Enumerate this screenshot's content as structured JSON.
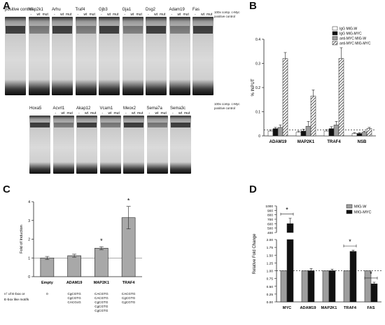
{
  "panels": {
    "A": {
      "letter": "A"
    },
    "B": {
      "letter": "B"
    },
    "C": {
      "letter": "C"
    },
    "D": {
      "letter": "D"
    }
  },
  "gels": {
    "lane_sub": {
      "minus": "-",
      "wt": "wt",
      "mut": "mut"
    },
    "control_note": "100x comp. c-Myc positive control",
    "row1": [
      {
        "label": "positive control"
      },
      {
        "label": "Map2k1"
      },
      {
        "label": "Arhu"
      },
      {
        "label": "Traf4"
      },
      {
        "label": "Gjb3"
      },
      {
        "label": "Gja1"
      },
      {
        "label": "Dsg2"
      },
      {
        "label": "Adam19"
      },
      {
        "label": "Fas"
      }
    ],
    "row2": [
      {
        "label": "Hoxa5"
      },
      {
        "label": "Acvrl1"
      },
      {
        "label": "Akap12"
      },
      {
        "label": "Vcam1"
      },
      {
        "label": "Meox2"
      },
      {
        "label": "Sema7a"
      },
      {
        "label": "Sema3c"
      }
    ]
  },
  "colors": {
    "black": "#111111",
    "grey": "#9e9e9e",
    "white": "#ffffff",
    "gel_bg": "#dcdcdc",
    "gel_band": "#1a1a1a"
  },
  "chart_data": [
    {
      "panel": "B",
      "type": "bar",
      "ylabel": "% INPUT",
      "ylim": [
        0,
        0.4
      ],
      "yticks": [
        "0",
        "0.1",
        "0.2",
        "0.3",
        "0.4"
      ],
      "ytick_values": [
        0,
        0.1,
        0.2,
        0.3,
        0.4
      ],
      "dashed_line": 0.025,
      "categories": [
        "ADAM19",
        "MAP2K1",
        "TRAF4",
        "NSB"
      ],
      "series": [
        {
          "name": "IgG MIG-W",
          "fill": "white",
          "values": [
            0.02,
            0.015,
            0.02,
            0.01
          ],
          "errors": [
            0.005,
            0.005,
            0.006,
            0.003
          ]
        },
        {
          "name": "IgG MIG-MYC",
          "fill": "black",
          "values": [
            0.03,
            0.02,
            0.03,
            0.01
          ],
          "errors": [
            0.005,
            0.008,
            0.008,
            0.003
          ]
        },
        {
          "name": "anti-MYC MIG-W",
          "fill": "grey",
          "values": [
            0.035,
            0.04,
            0.045,
            0.015
          ],
          "errors": [
            0.01,
            0.02,
            0.015,
            0.004
          ]
        },
        {
          "name": "anti-MYC MIG-MYC",
          "fill": "hatch",
          "values": [
            0.32,
            0.165,
            0.32,
            0.03
          ],
          "errors": [
            0.025,
            0.025,
            0.045,
            0.005
          ]
        }
      ],
      "legend_position": "top-right"
    },
    {
      "panel": "C",
      "type": "bar",
      "ylabel": "Fold of Induction",
      "ylim": [
        0,
        4
      ],
      "yticks": [
        "0",
        "1",
        "2",
        "3",
        "4"
      ],
      "ytick_values": [
        0,
        1,
        2,
        3,
        4
      ],
      "reference_line": 1,
      "categories": [
        "Empty",
        "ADAM19",
        "MAP2K1",
        "TRAF4"
      ],
      "values": [
        1.0,
        1.12,
        1.52,
        3.15
      ],
      "errors": [
        0.08,
        0.08,
        0.08,
        0.6
      ],
      "significance": [
        "",
        "",
        "*",
        "*"
      ],
      "row_label": [
        "n° of E-box or",
        "E-box like motifs"
      ],
      "motifs": [
        [
          "0"
        ],
        [
          "CgCGTG",
          "CgCGTG",
          "CACGcG"
        ],
        [
          "CACGTG",
          "CACGTG",
          "CgCGTG",
          "CgCGTG",
          "CgCGTG"
        ],
        [
          "CACGTG",
          "CgCGTG",
          "CgCGTG"
        ]
      ]
    },
    {
      "panel": "D",
      "type": "bar",
      "ylabel": "Relative Fold Change",
      "broken_axis": true,
      "lower_ylim": [
        0,
        2.0
      ],
      "lower_yticks": [
        "0.00",
        "0.25",
        "0.50",
        "0.75",
        "1.00",
        "1.25",
        "1.50",
        "1.75",
        "2.00"
      ],
      "lower_ytick_values": [
        0,
        0.25,
        0.5,
        0.75,
        1.0,
        1.25,
        1.5,
        1.75,
        2.0
      ],
      "upper_ylim": [
        400,
        1000
      ],
      "upper_yticks": [
        "400",
        "500",
        "600",
        "700",
        "800",
        "900",
        "1000"
      ],
      "upper_ytick_values": [
        400,
        500,
        600,
        700,
        800,
        900,
        1000
      ],
      "reference_line": 1.0,
      "categories": [
        "MYC",
        "ADAM19",
        "MAP2K1",
        "TRAF4",
        "FAS"
      ],
      "series": [
        {
          "name": "MIG-W",
          "fill": "grey",
          "values": [
            1.0,
            1.0,
            1.0,
            1.0,
            1.0
          ],
          "errors": [
            0.0,
            0.0,
            0.0,
            0.0,
            0.0
          ]
        },
        {
          "name": "MIG-MYC",
          "fill": "black",
          "values": [
            600,
            1.0,
            1.0,
            1.62,
            0.58
          ],
          "errors": [
            120,
            0.07,
            0.05,
            0.04,
            0.05
          ]
        }
      ],
      "significance": [
        "*",
        "",
        "",
        "*",
        "*"
      ],
      "legend_position": "top-right"
    }
  ]
}
